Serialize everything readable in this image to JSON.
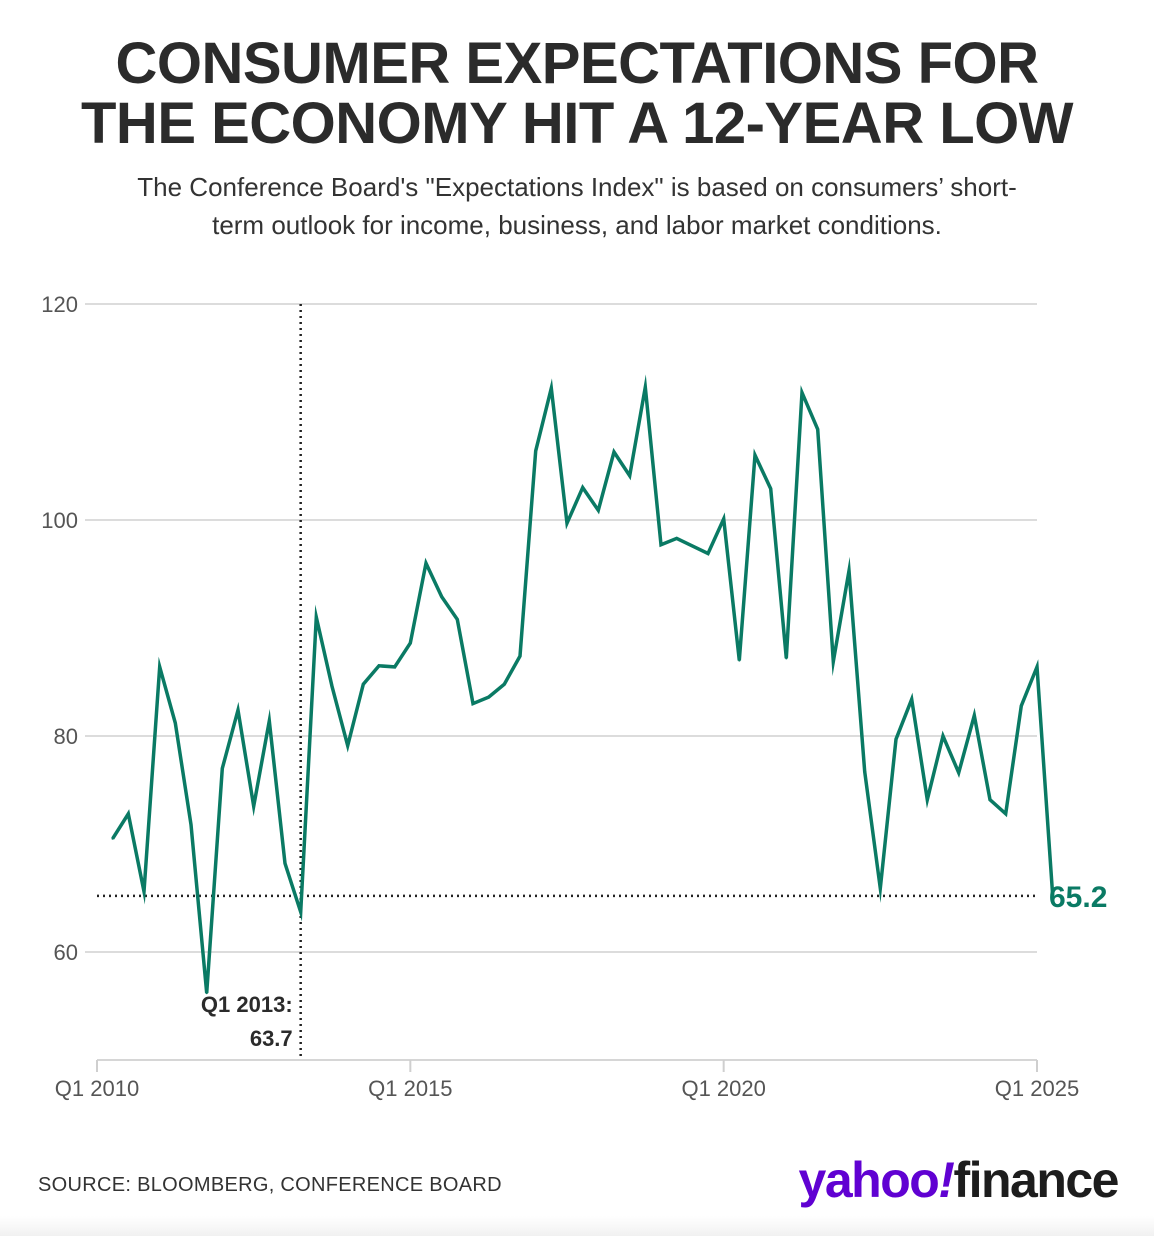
{
  "header": {
    "title_line1": "CONSUMER EXPECTATIONS FOR",
    "title_line2": "THE ECONOMY HIT A 12-YEAR LOW",
    "subtitle_line1": "The Conference Board's \"Expectations Index\" is based on consumers’ short-",
    "subtitle_line2": "term outlook for income, business, and labor market conditions."
  },
  "chart_data": {
    "type": "line",
    "title": "CONSUMER EXPECTATIONS FOR THE ECONOMY HIT A 12-YEAR LOW",
    "xlabel": "",
    "ylabel": "",
    "series": [
      {
        "name": "Expectations Index",
        "color": "#0a7a64",
        "start_year": 2010.25,
        "step_years": 0.25,
        "values": [
          70.5,
          72.8,
          65.6,
          86.4,
          81.2,
          71.8,
          56.2,
          77.0,
          82.4,
          73.5,
          81.4,
          68.2,
          63.7,
          91.0,
          84.6,
          79.1,
          84.8,
          86.5,
          86.4,
          88.6,
          96.0,
          92.9,
          90.8,
          83.0,
          83.6,
          84.8,
          87.4,
          106.4,
          112.2,
          99.7,
          103.0,
          100.9,
          106.3,
          104.1,
          112.3,
          97.7,
          98.3,
          97.6,
          96.9,
          100.1,
          87.0,
          106.0,
          102.9,
          87.2,
          111.8,
          108.4,
          86.9,
          95.3,
          76.7,
          65.9,
          79.7,
          83.4,
          74.1,
          80.0,
          76.6,
          81.9,
          74.1,
          72.8,
          82.8,
          86.4,
          65.2
        ]
      }
    ],
    "ylim": [
      50,
      120
    ],
    "yticks": [
      60,
      80,
      100,
      120
    ],
    "xlim": [
      2010,
      2025
    ],
    "xticks": [
      {
        "value": 2010,
        "label": "Q1 2010"
      },
      {
        "value": 2015,
        "label": "Q1 2015"
      },
      {
        "value": 2020,
        "label": "Q1 2020"
      },
      {
        "value": 2025,
        "label": "Q1 2025"
      }
    ],
    "grid": true,
    "annotations": {
      "marker_value": 2013.25,
      "marker_line1": "Q1 2013:",
      "marker_line2": "63.7",
      "latest_label": "65.2",
      "latest_value": 65.2
    }
  },
  "footer": {
    "source": "SOURCE: BLOOMBERG, CONFERENCE BOARD",
    "logo_yahoo": "yahoo",
    "logo_bang": "!",
    "logo_finance": "finance"
  }
}
